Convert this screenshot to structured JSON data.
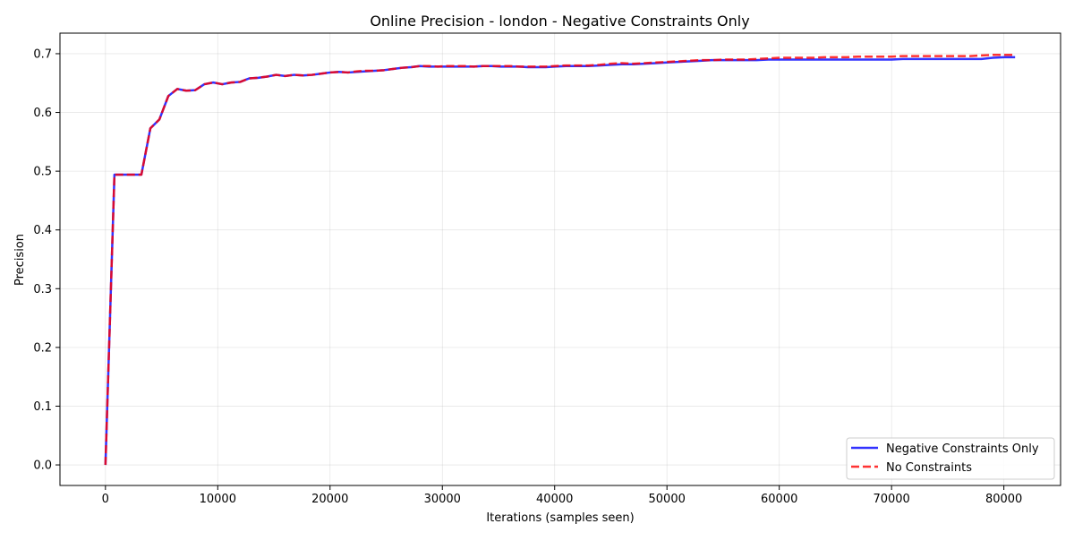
{
  "chart_data": {
    "type": "line",
    "title": "Online Precision - london - Negative Constraints Only",
    "xlabel": "Iterations (samples seen)",
    "ylabel": "Precision",
    "xlim": [
      -4050,
      85050
    ],
    "ylim": [
      -0.035,
      0.735
    ],
    "xticks": [
      0,
      10000,
      20000,
      30000,
      40000,
      50000,
      60000,
      70000,
      80000
    ],
    "yticks": [
      0.0,
      0.1,
      0.2,
      0.3,
      0.4,
      0.5,
      0.6,
      0.7
    ],
    "xtick_labels": [
      "0",
      "10000",
      "20000",
      "30000",
      "40000",
      "50000",
      "60000",
      "70000",
      "80000"
    ],
    "ytick_labels": [
      "0.0",
      "0.1",
      "0.2",
      "0.3",
      "0.4",
      "0.5",
      "0.6",
      "0.7"
    ],
    "grid": true,
    "legend_position": "bottom-right",
    "x": [
      0,
      800,
      1600,
      2400,
      3200,
      4000,
      4800,
      5600,
      6400,
      7200,
      8000,
      8800,
      9600,
      10400,
      11200,
      12000,
      12800,
      13600,
      14400,
      15200,
      16000,
      16800,
      17600,
      18400,
      19200,
      20000,
      20800,
      21600,
      22400,
      23200,
      24000,
      24800,
      25600,
      26400,
      27200,
      28000,
      28800,
      29600,
      30400,
      31200,
      32000,
      32800,
      33600,
      34400,
      35200,
      36000,
      36800,
      37600,
      38400,
      39200,
      40000,
      41000,
      42000,
      43000,
      44000,
      45000,
      46000,
      47000,
      48000,
      49000,
      50000,
      51000,
      52000,
      53000,
      54000,
      55000,
      56000,
      57000,
      58000,
      59000,
      60000,
      61000,
      62000,
      63000,
      64000,
      65000,
      66000,
      67000,
      68000,
      69000,
      70000,
      71000,
      72000,
      73000,
      74000,
      75000,
      76000,
      77000,
      78000,
      79000,
      80000,
      81000
    ],
    "series": [
      {
        "name": "Negative Constraints Only",
        "color": "#0000ff",
        "dash": "solid",
        "values": [
          0.0,
          0.494,
          0.494,
          0.494,
          0.494,
          0.573,
          0.588,
          0.628,
          0.64,
          0.637,
          0.638,
          0.648,
          0.651,
          0.648,
          0.651,
          0.652,
          0.658,
          0.659,
          0.661,
          0.664,
          0.662,
          0.664,
          0.663,
          0.664,
          0.666,
          0.668,
          0.669,
          0.668,
          0.669,
          0.67,
          0.671,
          0.672,
          0.674,
          0.676,
          0.677,
          0.679,
          0.678,
          0.678,
          0.678,
          0.678,
          0.678,
          0.678,
          0.679,
          0.679,
          0.678,
          0.678,
          0.678,
          0.677,
          0.677,
          0.677,
          0.678,
          0.679,
          0.679,
          0.679,
          0.68,
          0.681,
          0.682,
          0.682,
          0.683,
          0.684,
          0.685,
          0.686,
          0.687,
          0.688,
          0.689,
          0.689,
          0.689,
          0.689,
          0.689,
          0.69,
          0.69,
          0.69,
          0.69,
          0.69,
          0.69,
          0.69,
          0.69,
          0.69,
          0.69,
          0.69,
          0.69,
          0.691,
          0.691,
          0.691,
          0.691,
          0.691,
          0.691,
          0.691,
          0.691,
          0.693,
          0.694,
          0.694
        ]
      },
      {
        "name": "No Constraints",
        "color": "#ff0000",
        "dash": "dashed",
        "values": [
          0.0,
          0.494,
          0.494,
          0.494,
          0.494,
          0.573,
          0.588,
          0.628,
          0.64,
          0.637,
          0.638,
          0.648,
          0.651,
          0.648,
          0.651,
          0.652,
          0.658,
          0.659,
          0.661,
          0.664,
          0.662,
          0.664,
          0.663,
          0.664,
          0.666,
          0.668,
          0.669,
          0.668,
          0.67,
          0.671,
          0.671,
          0.672,
          0.674,
          0.676,
          0.677,
          0.679,
          0.679,
          0.678,
          0.679,
          0.679,
          0.679,
          0.678,
          0.679,
          0.679,
          0.679,
          0.679,
          0.678,
          0.678,
          0.678,
          0.678,
          0.679,
          0.68,
          0.68,
          0.68,
          0.681,
          0.683,
          0.684,
          0.683,
          0.684,
          0.685,
          0.686,
          0.687,
          0.688,
          0.689,
          0.689,
          0.69,
          0.69,
          0.69,
          0.691,
          0.692,
          0.693,
          0.693,
          0.693,
          0.693,
          0.694,
          0.694,
          0.694,
          0.695,
          0.695,
          0.695,
          0.695,
          0.696,
          0.696,
          0.696,
          0.696,
          0.696,
          0.696,
          0.696,
          0.697,
          0.698,
          0.698,
          0.698
        ]
      }
    ]
  }
}
